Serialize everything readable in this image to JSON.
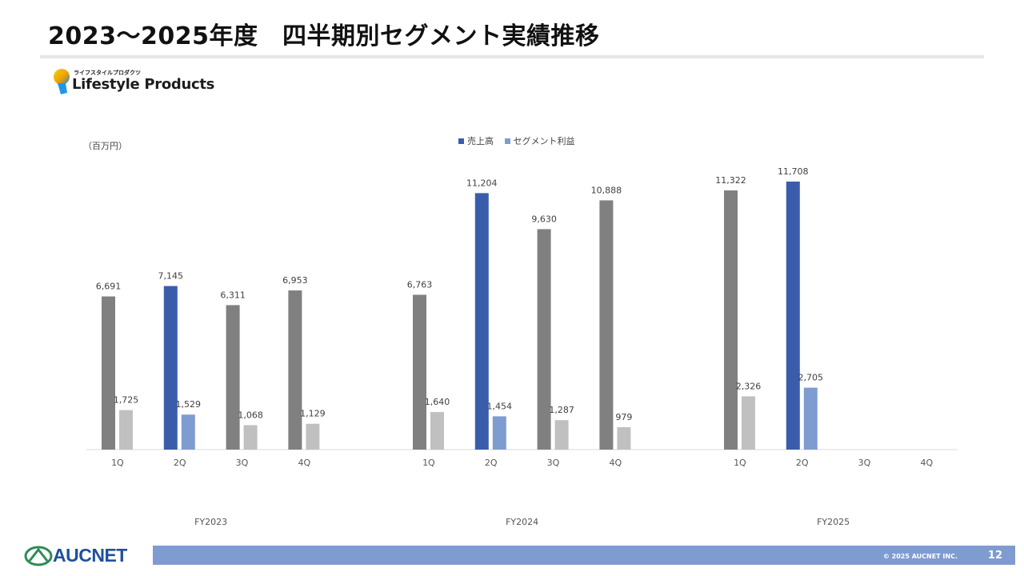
{
  "page": {
    "title": "2023〜2025年度　四半期別セグメント実績推移",
    "page_number": "12",
    "copyright": "© 2025 AUCNET INC."
  },
  "segment_logo": {
    "kana": "ライフスタイルプロダクツ",
    "name": "Lifestyle Products",
    "icon": "lightbulb-icon"
  },
  "company_logo": {
    "name": "AUCNET",
    "icon": "aucnet-emblem-icon",
    "color": "#1f4f9e"
  },
  "chart_data": {
    "type": "bar",
    "unit_label": "（百万円）",
    "groups": [
      "FY2023",
      "FY2024",
      "FY2025"
    ],
    "quarters": [
      "1Q",
      "2Q",
      "3Q",
      "4Q"
    ],
    "series": [
      {
        "name": "売上高",
        "legend_color": "#3a5dab",
        "highlight_color": "#3a5dab",
        "base_color": "#808080",
        "values": [
          6691,
          7145,
          6311,
          6953,
          6763,
          11204,
          9630,
          10888,
          11322,
          11708,
          null,
          null
        ],
        "labels": [
          "6,691",
          "7,145",
          "6,311",
          "6,953",
          "6,763",
          "11,204",
          "9,630",
          "10,888",
          "11,322",
          "11,708",
          "",
          ""
        ]
      },
      {
        "name": "セグメント利益",
        "legend_color": "#7f9cd1",
        "highlight_color": "#7f9cd1",
        "base_color": "#c0c0c0",
        "values": [
          1725,
          1529,
          1068,
          1129,
          1640,
          1454,
          1287,
          979,
          2326,
          2705,
          null,
          null
        ],
        "labels": [
          "1,725",
          "1,529",
          "1,068",
          "1,129",
          "1,640",
          "1,454",
          "1,287",
          "979",
          "2,326",
          "2,705",
          "",
          ""
        ]
      }
    ],
    "highlighted_quarter": "2Q",
    "ylim": [
      0,
      13000
    ],
    "grid": false,
    "legend_position": "top-center"
  }
}
